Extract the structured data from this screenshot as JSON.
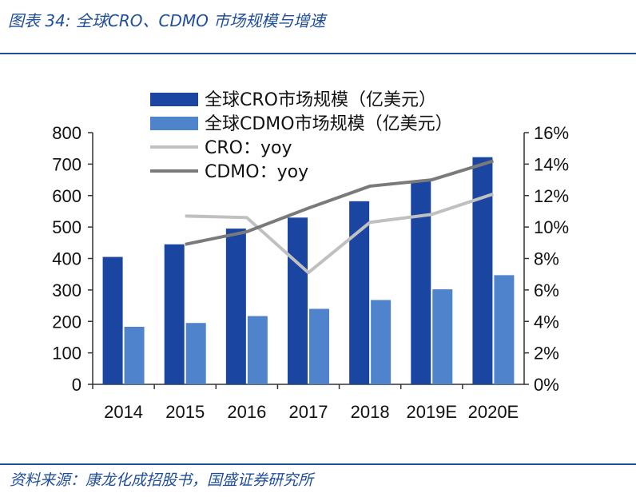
{
  "header": {
    "title": "图表 34:  全球CRO、CDMO 市场规模与增速"
  },
  "footer": {
    "source": "资料来源：康龙化成招股书，国盛证券研究所"
  },
  "colors": {
    "accent": "#1f4e9c",
    "cro_bar": "#1a45a0",
    "cdmo_bar": "#4f83cc",
    "cro_line": "#c0c0c0",
    "cdmo_line": "#7a7a7a"
  },
  "chart_data": {
    "type": "bar+line",
    "categories": [
      "2014",
      "2015",
      "2016",
      "2017",
      "2018",
      "2019E",
      "2020E"
    ],
    "series": [
      {
        "name": "全球CRO市场规模（亿美元）",
        "kind": "bar",
        "axis": "left",
        "values": [
          405,
          445,
          495,
          530,
          582,
          645,
          722
        ]
      },
      {
        "name": "全球CDMO市场规模（亿美元）",
        "kind": "bar",
        "axis": "left",
        "values": [
          183,
          195,
          217,
          240,
          268,
          302,
          347
        ]
      },
      {
        "name": "CRO：yoy",
        "kind": "line",
        "axis": "right",
        "values": [
          null,
          10.7,
          10.6,
          7.1,
          10.3,
          10.8,
          12.1
        ]
      },
      {
        "name": "CDMO：yoy",
        "kind": "line",
        "axis": "right",
        "values": [
          null,
          8.9,
          9.7,
          11.2,
          12.6,
          13.0,
          14.2
        ]
      }
    ],
    "left_axis": {
      "min": 0,
      "max": 800,
      "step": 100,
      "tick_labels": [
        "0",
        "100",
        "200",
        "300",
        "400",
        "500",
        "600",
        "700",
        "800"
      ]
    },
    "right_axis": {
      "min": 0,
      "max": 16,
      "step": 2,
      "tick_labels": [
        "0%",
        "2%",
        "4%",
        "6%",
        "8%",
        "10%",
        "12%",
        "14%",
        "16%"
      ]
    },
    "legend": [
      "全球CRO市场规模（亿美元）",
      "全球CDMO市场规模（亿美元）",
      "CRO：yoy",
      "CDMO：yoy"
    ],
    "legend_position": "top-left"
  }
}
